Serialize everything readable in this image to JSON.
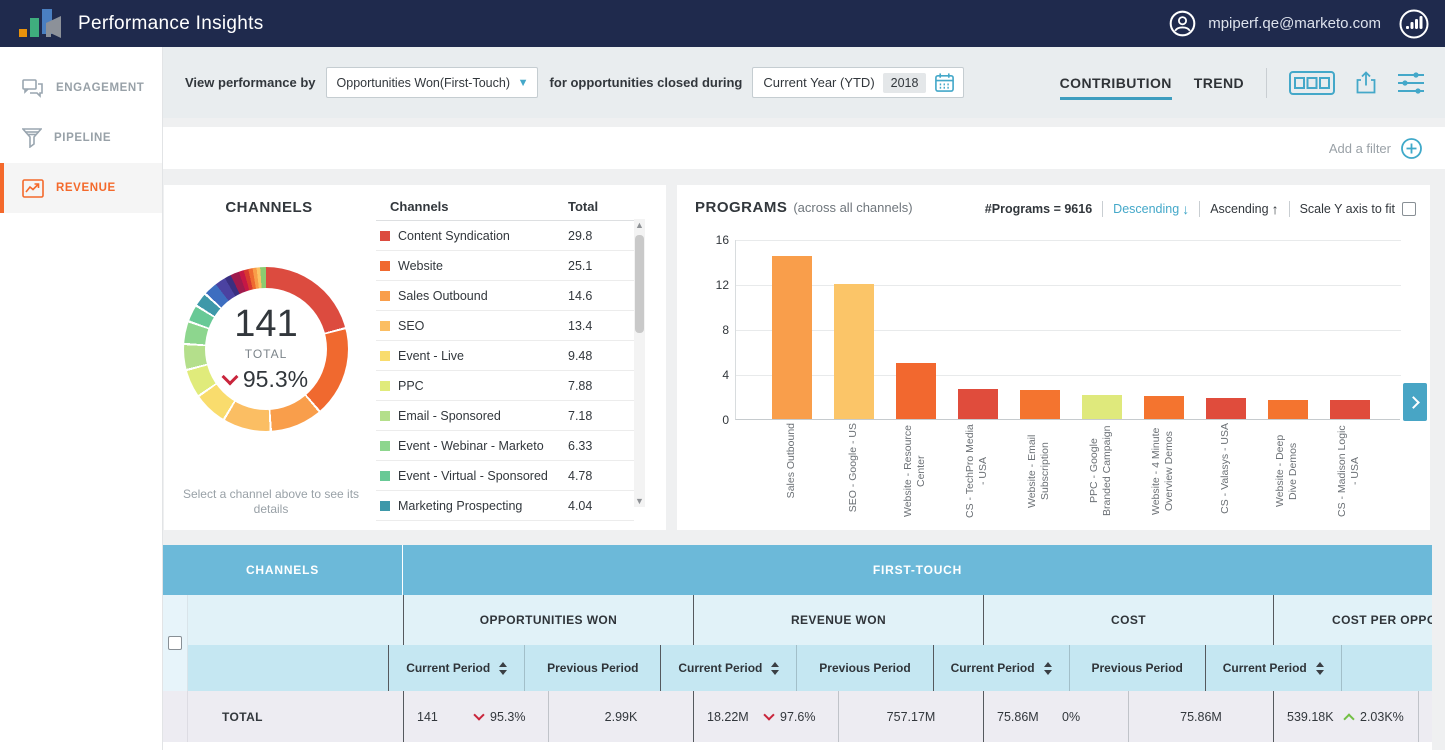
{
  "nav": {
    "title": "Performance Insights",
    "user_email": "mpiperf.qe@marketo.com"
  },
  "sidebar": {
    "items": [
      {
        "label": "ENGAGEMENT",
        "active": false
      },
      {
        "label": "PIPELINE",
        "active": false
      },
      {
        "label": "REVENUE",
        "active": true
      }
    ]
  },
  "controls": {
    "view_by_label": "View performance by",
    "view_by_value": "Opportunities Won(First-Touch)",
    "closed_during_label": "for opportunities closed during",
    "period_value": "Current Year (YTD)",
    "period_year": "2018",
    "tabs": [
      {
        "label": "CONTRIBUTION",
        "active": true
      },
      {
        "label": "TREND",
        "active": false
      }
    ]
  },
  "filter_bar": {
    "add_filter_label": "Add a filter"
  },
  "channels_panel": {
    "title": "CHANNELS",
    "hint_line1": "Select a channel above to see its",
    "hint_line2": "details",
    "list_header": {
      "channels": "Channels",
      "total": "Total"
    }
  },
  "programs_panel": {
    "title": "PROGRAMS",
    "subtitle": "(across all channels)",
    "programs_count": "#Programs = 9616",
    "descending_label": "Descending",
    "ascending_label": "Ascending",
    "scale_label": "Scale Y axis to fit"
  },
  "chart_data": [
    {
      "type": "donut",
      "title": "CHANNELS",
      "center_value": "141",
      "center_label": "TOTAL",
      "center_change": "95.3%",
      "center_change_direction": "down",
      "total": 141,
      "segments": [
        {
          "label": "Content Syndication",
          "value": 29.8,
          "color": "#DC4B3F"
        },
        {
          "label": "Website",
          "value": 25.1,
          "color": "#F0692F"
        },
        {
          "label": "Sales Outbound",
          "value": 14.6,
          "color": "#F99E4B"
        },
        {
          "label": "SEO",
          "value": 13.4,
          "color": "#FBBE63"
        },
        {
          "label": "Event - Live",
          "value": 9.48,
          "color": "#F9DC6D"
        },
        {
          "label": "PPC",
          "value": 7.88,
          "color": "#E0EB7B"
        },
        {
          "label": "Email - Sponsored",
          "value": 7.18,
          "color": "#B4DF8B"
        },
        {
          "label": "Event - Webinar - Marketo",
          "value": 6.33,
          "color": "#8DD68E"
        },
        {
          "label": "Event - Virtual - Sponsored",
          "value": 4.78,
          "color": "#68C996"
        },
        {
          "label": "Marketing Prospecting",
          "value": 4.04,
          "color": "#3E98A9"
        }
      ],
      "unlabeled_segments": [
        {
          "value": 3.6,
          "color": "#3D6EC0"
        },
        {
          "value": 3.0,
          "color": "#4B42A1"
        },
        {
          "value": 1.8,
          "color": "#3A2F80"
        },
        {
          "value": 2.4,
          "color": "#9E1B4D"
        },
        {
          "value": 1.4,
          "color": "#C61745"
        },
        {
          "value": 1.3,
          "color": "#D8382F"
        },
        {
          "value": 1.2,
          "color": "#EE6A30"
        },
        {
          "value": 1.1,
          "color": "#F89D49"
        },
        {
          "value": 1.0,
          "color": "#FBC364"
        },
        {
          "value": 1.5,
          "color": "#8CCB70"
        }
      ]
    },
    {
      "type": "bar",
      "title": "PROGRAMS (across all channels)",
      "ylim": [
        0,
        16
      ],
      "yticks": [
        16,
        12,
        8,
        4,
        0
      ],
      "grid": true,
      "categories": [
        "Sales Outbound",
        "SEO - Google - US",
        "Website - Resource Center",
        "CS - TechPro Media - USA",
        "Website - Email Subscription",
        "PPC - Google Branded Campaign",
        "Website - 4 Minute Overview Demos",
        "CS - Valasys - USA",
        "Website - Deep Dive Demos",
        "CS - Madison Logic - USA"
      ],
      "values": [
        14.5,
        12,
        5,
        2.7,
        2.6,
        2.1,
        2.05,
        1.85,
        1.7,
        1.7
      ],
      "colors": [
        "#F99E4B",
        "#FBC568",
        "#F2682F",
        "#E04C3C",
        "#F4742F",
        "#DFE97C",
        "#F4742F",
        "#E04C3C",
        "#F4742F",
        "#E04C3C"
      ]
    }
  ],
  "table": {
    "channels_header": "CHANNELS",
    "first_touch_header": "FIRST-TOUCH",
    "groups": [
      "OPPORTUNITIES WON",
      "REVENUE WON",
      "COST",
      "COST PER OPPOR"
    ],
    "current_label": "Current Period",
    "previous_label": "Previous Period",
    "total_row": {
      "label": "TOTAL",
      "cells": [
        {
          "value": "141",
          "change": "95.3%",
          "direction": "down"
        },
        {
          "value": "2.99K"
        },
        {
          "value": "18.22M",
          "change": "97.6%",
          "direction": "down"
        },
        {
          "value": "757.17M"
        },
        {
          "value": "75.86M",
          "change": "0%",
          "direction": "none"
        },
        {
          "value": "75.86M"
        },
        {
          "value": "539.18K",
          "change": "2.03K%",
          "direction": "up"
        }
      ]
    }
  }
}
